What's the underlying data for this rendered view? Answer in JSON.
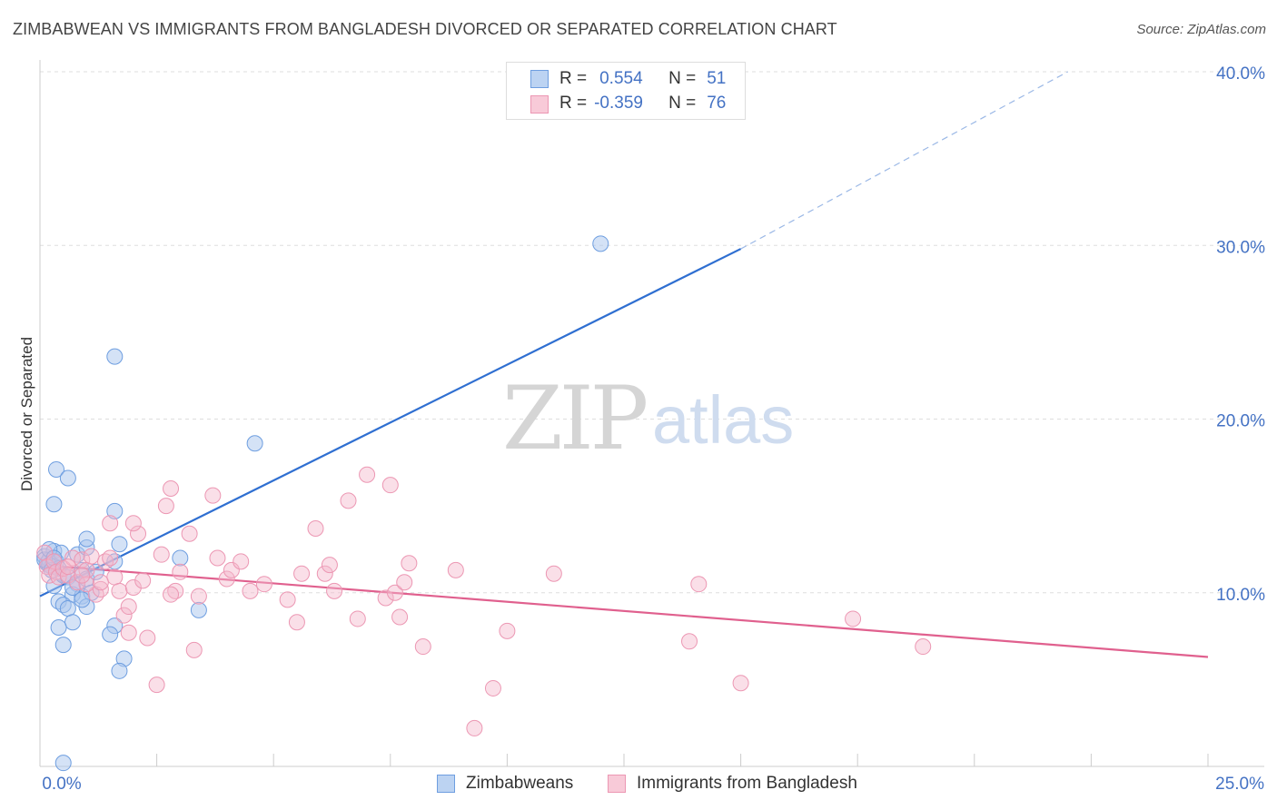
{
  "title": "ZIMBABWEAN VS IMMIGRANTS FROM BANGLADESH DIVORCED OR SEPARATED CORRELATION CHART",
  "source": "Source: ZipAtlas.com",
  "watermark": {
    "zip": "ZIP",
    "atlas": "atlas"
  },
  "legend": {
    "r_label": "R =",
    "n_label": "N =",
    "series1": {
      "r": "0.554",
      "n": "51"
    },
    "series2": {
      "r": "-0.359",
      "n": "76"
    }
  },
  "bottom_legend": {
    "series1": "Zimbabweans",
    "series2": "Immigrants from Bangladesh"
  },
  "colors": {
    "blue_fill": "#a9c6ee",
    "blue_line": "#2f6fd1",
    "pink_fill": "#f5b8cb",
    "pink_line": "#e0608e",
    "axis_text": "#4472c4"
  },
  "chart_data": {
    "type": "scatter",
    "ylabel": "Divorced or Separated",
    "xlim": [
      0,
      25
    ],
    "ylim": [
      0,
      40
    ],
    "x_tick_labels": [
      "0.0%",
      "25.0%"
    ],
    "y_ticks": [
      10,
      20,
      30,
      40
    ],
    "y_tick_labels": [
      "10.0%",
      "20.0%",
      "30.0%",
      "40.0%"
    ],
    "series": [
      {
        "name": "Zimbabweans",
        "points": [
          [
            0.1,
            12.1
          ],
          [
            0.15,
            11.7
          ],
          [
            0.2,
            11.9
          ],
          [
            0.25,
            11.5
          ],
          [
            0.3,
            12.4
          ],
          [
            0.35,
            11.8
          ],
          [
            0.2,
            11.6
          ],
          [
            0.4,
            11.4
          ],
          [
            0.3,
            10.4
          ],
          [
            0.5,
            11.0
          ],
          [
            0.6,
            10.9
          ],
          [
            0.8,
            10.5
          ],
          [
            0.9,
            11.3
          ],
          [
            1.0,
            10.8
          ],
          [
            0.7,
            9.9
          ],
          [
            0.9,
            9.8
          ],
          [
            1.1,
            10.0
          ],
          [
            0.4,
            9.5
          ],
          [
            0.5,
            9.3
          ],
          [
            0.6,
            9.1
          ],
          [
            1.0,
            9.2
          ],
          [
            0.8,
            12.2
          ],
          [
            1.0,
            12.6
          ],
          [
            1.0,
            13.1
          ],
          [
            1.2,
            11.2
          ],
          [
            0.3,
            15.1
          ],
          [
            0.35,
            17.1
          ],
          [
            0.6,
            16.6
          ],
          [
            1.6,
            14.7
          ],
          [
            1.7,
            12.8
          ],
          [
            1.6,
            8.1
          ],
          [
            1.5,
            7.6
          ],
          [
            1.8,
            6.2
          ],
          [
            1.7,
            5.5
          ],
          [
            0.7,
            8.3
          ],
          [
            0.4,
            8.0
          ],
          [
            0.5,
            7.0
          ],
          [
            1.6,
            11.8
          ],
          [
            3.0,
            12.0
          ],
          [
            3.4,
            9.0
          ],
          [
            4.6,
            18.6
          ],
          [
            1.6,
            23.6
          ],
          [
            12.0,
            30.1
          ],
          [
            0.5,
            0.2
          ],
          [
            0.1,
            11.9
          ],
          [
            0.45,
            12.3
          ],
          [
            0.2,
            12.5
          ],
          [
            0.25,
            11.3
          ],
          [
            0.7,
            10.3
          ],
          [
            0.9,
            9.6
          ],
          [
            0.3,
            12.0
          ]
        ],
        "trend": {
          "x": [
            0,
            15
          ],
          "y": [
            9.8,
            29.8
          ],
          "dashed_to": [
            22,
            40
          ]
        }
      },
      {
        "name": "Immigrants from Bangladesh",
        "points": [
          [
            0.1,
            12.3
          ],
          [
            0.15,
            11.5
          ],
          [
            0.2,
            11.0
          ],
          [
            0.3,
            11.8
          ],
          [
            0.35,
            11.2
          ],
          [
            0.4,
            10.9
          ],
          [
            0.5,
            11.4
          ],
          [
            0.6,
            11.0
          ],
          [
            0.7,
            12.0
          ],
          [
            0.8,
            10.6
          ],
          [
            0.9,
            11.9
          ],
          [
            1.0,
            11.3
          ],
          [
            1.1,
            12.1
          ],
          [
            1.2,
            9.9
          ],
          [
            1.3,
            10.2
          ],
          [
            1.4,
            11.8
          ],
          [
            1.5,
            12.0
          ],
          [
            1.6,
            10.9
          ],
          [
            1.7,
            10.1
          ],
          [
            1.8,
            8.7
          ],
          [
            1.9,
            9.2
          ],
          [
            1.9,
            7.7
          ],
          [
            2.0,
            10.3
          ],
          [
            2.1,
            13.4
          ],
          [
            2.2,
            10.7
          ],
          [
            2.3,
            7.4
          ],
          [
            2.5,
            4.7
          ],
          [
            2.6,
            12.2
          ],
          [
            2.7,
            15.0
          ],
          [
            2.8,
            16.0
          ],
          [
            2.9,
            10.1
          ],
          [
            3.0,
            11.2
          ],
          [
            3.2,
            13.4
          ],
          [
            3.3,
            6.7
          ],
          [
            3.4,
            9.8
          ],
          [
            3.7,
            15.6
          ],
          [
            3.8,
            12.0
          ],
          [
            4.0,
            10.8
          ],
          [
            4.1,
            11.3
          ],
          [
            4.3,
            11.8
          ],
          [
            4.5,
            10.1
          ],
          [
            4.8,
            10.5
          ],
          [
            5.3,
            9.6
          ],
          [
            5.5,
            8.3
          ],
          [
            5.6,
            11.1
          ],
          [
            5.9,
            13.7
          ],
          [
            6.1,
            11.1
          ],
          [
            6.2,
            11.6
          ],
          [
            6.3,
            10.1
          ],
          [
            6.6,
            15.3
          ],
          [
            6.8,
            8.5
          ],
          [
            7.0,
            16.8
          ],
          [
            7.4,
            9.7
          ],
          [
            7.5,
            16.2
          ],
          [
            7.6,
            10.0
          ],
          [
            7.7,
            8.6
          ],
          [
            7.8,
            10.6
          ],
          [
            7.9,
            11.7
          ],
          [
            8.2,
            6.9
          ],
          [
            8.9,
            11.3
          ],
          [
            9.3,
            2.2
          ],
          [
            9.7,
            4.5
          ],
          [
            10.0,
            7.8
          ],
          [
            11.0,
            11.1
          ],
          [
            13.9,
            7.2
          ],
          [
            14.1,
            10.5
          ],
          [
            15.0,
            4.8
          ],
          [
            17.4,
            8.5
          ],
          [
            18.9,
            6.9
          ],
          [
            1.0,
            10.5
          ],
          [
            1.5,
            14.0
          ],
          [
            2.0,
            14.0
          ],
          [
            0.6,
            11.5
          ],
          [
            0.9,
            11.0
          ],
          [
            1.3,
            10.6
          ],
          [
            2.8,
            9.9
          ]
        ],
        "trend": {
          "x": [
            0,
            25
          ],
          "y": [
            11.6,
            6.3
          ]
        }
      }
    ]
  }
}
